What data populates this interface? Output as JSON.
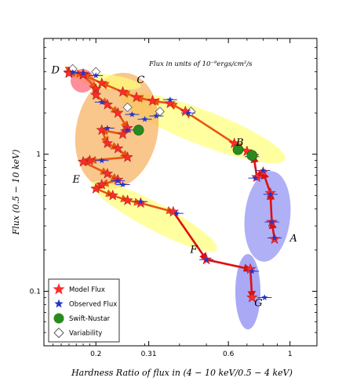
{
  "chart_data": {
    "type": "scatter",
    "title": "",
    "xlabel": "Hardness Ratio of flux in (4 − 10 keV/0.5 − 4 keV)",
    "ylabel": "Flux (0.5 − 10 keV)",
    "annotation": "Flux in units of 10⁻⁹ergs/cm²/s",
    "x_scale": "log",
    "y_scale": "log",
    "xlim": [
      0.13,
      1.25
    ],
    "ylim": [
      0.04,
      7.0
    ],
    "x_ticks": [
      0.2,
      0.31,
      0.6,
      1
    ],
    "x_tick_labels": [
      "0.2",
      "0.31",
      "0.6",
      "1"
    ],
    "y_ticks": [
      0.1,
      1
    ],
    "y_tick_labels": [
      "0.1",
      "1"
    ],
    "legend_position": "bottom-left",
    "legend": [
      {
        "label": "Model Flux",
        "marker": "star",
        "color": "#ff2a2a"
      },
      {
        "label": "Observed Flux",
        "marker": "star",
        "color": "#2233cc"
      },
      {
        "label": "Swift-Nustar",
        "marker": "circle",
        "color": "#2a8a1f"
      },
      {
        "label": "Variability",
        "marker": "diamond",
        "color": "#ffffff"
      }
    ],
    "regions": [
      {
        "label": "D",
        "color": "#ff6a7a",
        "label_x": 0.143,
        "label_y": 3.9
      },
      {
        "label": "C",
        "color": "#ffff77",
        "label_x": 0.29,
        "label_y": 3.3
      },
      {
        "label": "B",
        "color": "#ffff77",
        "label_x": 0.66,
        "label_y": 1.15
      },
      {
        "label": "E",
        "color": "#ffff77",
        "label_x": 0.17,
        "label_y": 0.62
      },
      {
        "label": "F",
        "color": "#ffff77",
        "label_x": 0.45,
        "label_y": 0.19
      },
      {
        "label": "A",
        "color": "#6f6ff0",
        "label_x": 1.03,
        "label_y": 0.23
      },
      {
        "label": "G",
        "color": "#6f6ff0",
        "label_x": 0.77,
        "label_y": 0.078
      }
    ],
    "orange_region": {
      "color": "#f6a84d"
    },
    "path_color": "#e8560f",
    "path_red_color": "#dd1111",
    "series": [
      {
        "name": "Model Flux",
        "points": [
          [
            0.88,
            0.24
          ],
          [
            0.86,
            0.32
          ],
          [
            0.85,
            0.52
          ],
          [
            0.8,
            0.74
          ],
          [
            0.76,
            0.68
          ],
          [
            0.74,
            0.97
          ],
          [
            0.7,
            1.05
          ],
          [
            0.63,
            1.2
          ],
          [
            0.42,
            2.05
          ],
          [
            0.37,
            2.35
          ],
          [
            0.32,
            2.45
          ],
          [
            0.28,
            2.6
          ],
          [
            0.25,
            2.85
          ],
          [
            0.21,
            3.3
          ],
          [
            0.18,
            3.8
          ],
          [
            0.16,
            3.95
          ],
          [
            0.16,
            3.9
          ],
          [
            0.18,
            3.85
          ],
          [
            0.2,
            3.0
          ],
          [
            0.2,
            2.7
          ],
          [
            0.22,
            2.3
          ],
          [
            0.24,
            2.0
          ],
          [
            0.26,
            1.55
          ],
          [
            0.25,
            1.4
          ],
          [
            0.21,
            1.5
          ],
          [
            0.22,
            1.2
          ],
          [
            0.24,
            1.1
          ],
          [
            0.26,
            0.95
          ],
          [
            0.19,
            0.9
          ],
          [
            0.18,
            0.88
          ],
          [
            0.22,
            0.72
          ],
          [
            0.24,
            0.65
          ],
          [
            0.21,
            0.6
          ],
          [
            0.2,
            0.56
          ],
          [
            0.23,
            0.5
          ],
          [
            0.26,
            0.46
          ],
          [
            0.29,
            0.44
          ],
          [
            0.38,
            0.38
          ],
          [
            0.5,
            0.17
          ],
          [
            0.72,
            0.145
          ],
          [
            0.73,
            0.09
          ]
        ]
      },
      {
        "name": "Observed Flux",
        "points": [
          [
            0.88,
            0.245
          ],
          [
            0.86,
            0.32
          ],
          [
            0.85,
            0.51
          ],
          [
            0.8,
            0.76
          ],
          [
            0.75,
            0.67
          ],
          [
            0.73,
            0.96
          ],
          [
            0.43,
            2.0
          ],
          [
            0.37,
            2.5
          ],
          [
            0.33,
            1.9
          ],
          [
            0.3,
            1.8
          ],
          [
            0.27,
            1.95
          ],
          [
            0.21,
            2.4
          ],
          [
            0.22,
            1.55
          ],
          [
            0.18,
            3.9
          ],
          [
            0.165,
            3.95
          ],
          [
            0.2,
            3.75
          ],
          [
            0.26,
            1.5
          ],
          [
            0.21,
            0.9
          ],
          [
            0.24,
            0.64
          ],
          [
            0.25,
            0.6
          ],
          [
            0.29,
            0.45
          ],
          [
            0.39,
            0.37
          ],
          [
            0.5,
            0.17
          ],
          [
            0.73,
            0.14
          ],
          [
            0.81,
            0.09
          ]
        ]
      },
      {
        "name": "Swift-Nustar",
        "points": [
          [
            0.285,
            1.5
          ],
          [
            0.65,
            1.08
          ],
          [
            0.73,
            0.98
          ]
        ]
      },
      {
        "name": "Variability",
        "points": [
          [
            0.165,
            4.2
          ],
          [
            0.2,
            4.0
          ],
          [
            0.26,
            2.2
          ],
          [
            0.34,
            2.05
          ],
          [
            0.44,
            2.05
          ]
        ]
      }
    ]
  }
}
